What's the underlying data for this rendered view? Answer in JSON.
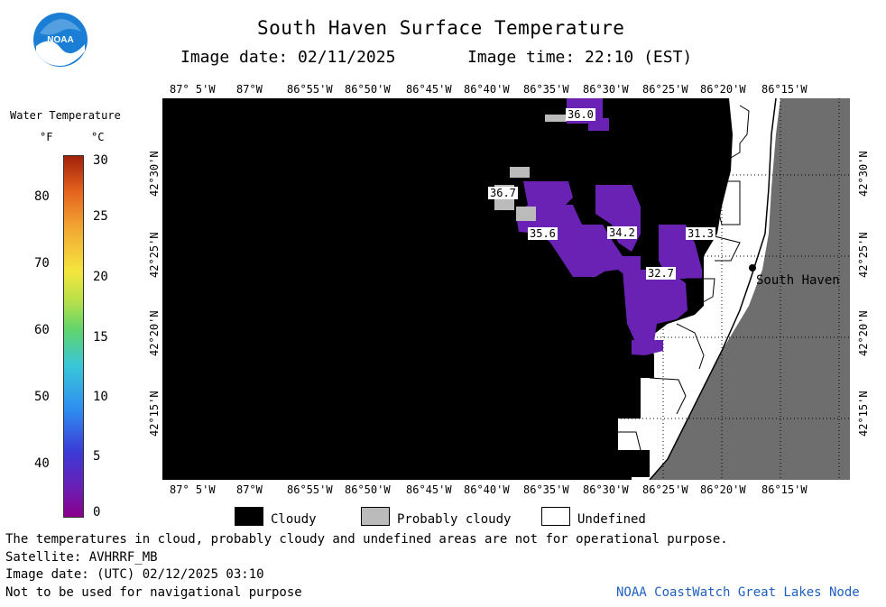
{
  "header": {
    "title": "South Haven Surface Temperature",
    "image_date": "Image date: 02/11/2025",
    "image_time": "Image time: 22:10 (EST)"
  },
  "logo": {
    "text": "NOAA",
    "color": "#1a7fd4"
  },
  "colorbar": {
    "title": "Water Temperature",
    "unit_f": "°F",
    "unit_c": "°C",
    "f_ticks": [
      "80",
      "70",
      "60",
      "50",
      "40"
    ],
    "c_ticks": [
      "30",
      "25",
      "20",
      "15",
      "10",
      "5",
      "0"
    ]
  },
  "map": {
    "lon_labels": [
      "87° 5'W",
      "87°W",
      "86°55'W",
      "86°50'W",
      "86°45'W",
      "86°40'W",
      "86°35'W",
      "86°30'W",
      "86°25'W",
      "86°20'W",
      "86°15'W"
    ],
    "lat_labels": [
      "42°30'N",
      "42°25'N",
      "42°20'N",
      "42°15'N"
    ],
    "temp_labels": [
      "36.0",
      "36.7",
      "35.6",
      "34.2",
      "31.3",
      "32.7"
    ],
    "city": "South Haven",
    "colors": {
      "cloud": "#000000",
      "land": "#6e6e6e",
      "water_purple": "#6a22b4",
      "probably_cloudy": "#bbbbbb"
    }
  },
  "legend": {
    "items": [
      {
        "label": "Cloudy",
        "color": "#000000"
      },
      {
        "label": "Probably cloudy",
        "color": "#bbbbbb"
      },
      {
        "label": "Undefined",
        "color": "#ffffff"
      }
    ]
  },
  "footer": {
    "note": "The temperatures in cloud, probably cloudy and undefined areas are not for operational purpose.",
    "satellite": "Satellite: AVHRRF_MB",
    "utc_date": "Image date: (UTC) 02/12/2025  03:10",
    "nav_warning": "Not to be used for navigational purpose",
    "credit": "NOAA CoastWatch Great Lakes Node"
  }
}
